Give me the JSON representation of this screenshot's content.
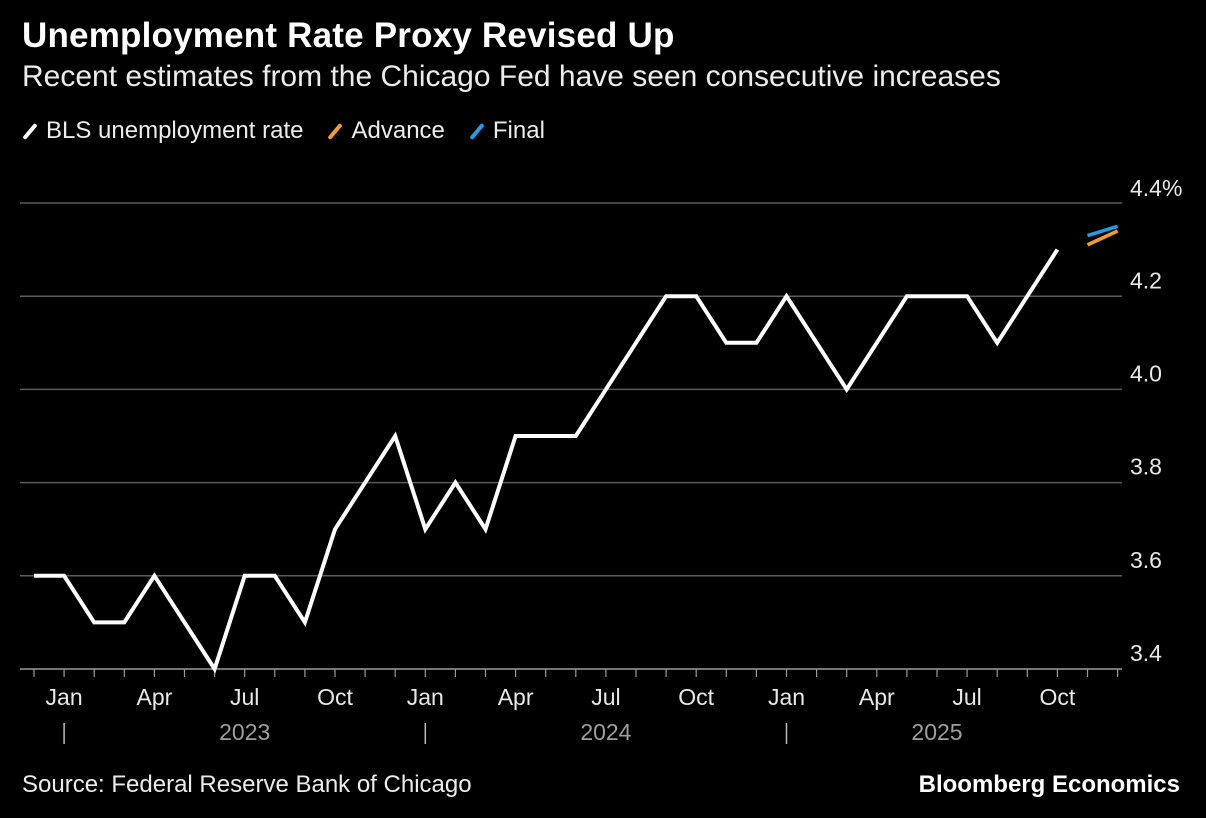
{
  "header": {
    "title": "Unemployment Rate Proxy Revised Up",
    "subtitle": "Recent estimates from the Chicago Fed have seen consecutive increases"
  },
  "legend": [
    {
      "label": "BLS unemployment rate",
      "color": "#ffffff"
    },
    {
      "label": "Advance",
      "color": "#f39c2b"
    },
    {
      "label": "Final",
      "color": "#1f9ee8"
    }
  ],
  "footer": {
    "source": "Source: Federal Reserve Bank of Chicago",
    "brand": "Bloomberg Economics"
  },
  "chart_data": {
    "type": "line",
    "title": "Unemployment Rate Proxy Revised Up",
    "ylim": [
      3.4,
      4.4
    ],
    "yticks": [
      3.4,
      3.6,
      3.8,
      4.0,
      4.2,
      4.4
    ],
    "ytick_labels": [
      "3.4",
      "3.6",
      "3.8",
      "4.0",
      "4.2",
      "4.4%"
    ],
    "xticks": [
      {
        "label": "Jan",
        "month_index": 1
      },
      {
        "label": "Apr",
        "month_index": 4
      },
      {
        "label": "Jul",
        "month_index": 7
      },
      {
        "label": "Oct",
        "month_index": 10
      },
      {
        "label": "Jan",
        "month_index": 13
      },
      {
        "label": "Apr",
        "month_index": 16
      },
      {
        "label": "Jul",
        "month_index": 19
      },
      {
        "label": "Oct",
        "month_index": 22
      },
      {
        "label": "Jan",
        "month_index": 25
      },
      {
        "label": "Apr",
        "month_index": 28
      },
      {
        "label": "Jul",
        "month_index": 31
      },
      {
        "label": "Oct",
        "month_index": 34
      }
    ],
    "year_labels": [
      {
        "label": "2023",
        "month_index": 7
      },
      {
        "label": "2024",
        "month_index": 19
      },
      {
        "label": "2025",
        "month_index": 30
      }
    ],
    "year_dividers": [
      1,
      13,
      25
    ],
    "grid": true,
    "series": [
      {
        "name": "BLS unemployment rate",
        "color": "#ffffff",
        "start_month_index": 0,
        "values": [
          3.6,
          3.6,
          3.5,
          3.5,
          3.6,
          3.5,
          3.4,
          3.6,
          3.6,
          3.5,
          3.7,
          3.8,
          3.9,
          3.7,
          3.8,
          3.7,
          3.9,
          3.9,
          3.9,
          4.0,
          4.1,
          4.2,
          4.2,
          4.1,
          4.1,
          4.2,
          4.1,
          4.0,
          4.1,
          4.2,
          4.2,
          4.2,
          4.1,
          4.2,
          4.3
        ]
      },
      {
        "name": "Advance",
        "color": "#f39c2b",
        "start_month_index": 35,
        "values": [
          4.31,
          4.34
        ]
      },
      {
        "name": "Final",
        "color": "#1f9ee8",
        "start_month_index": 35,
        "values": [
          4.33,
          4.35
        ]
      }
    ]
  }
}
